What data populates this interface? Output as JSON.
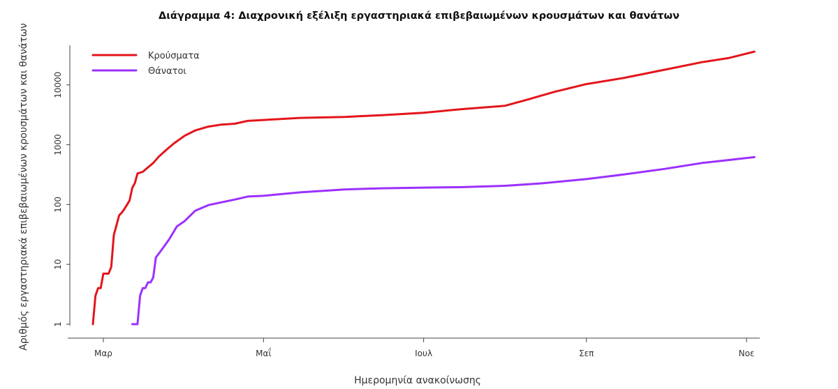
{
  "chart_data": {
    "type": "line",
    "title": "Διάγραμμα 4: Διαχρονική εξέλιξη εργαστηριακά επιβεβαιωμένων κρουσμάτων και θανάτων",
    "xlabel": "Ημερομηνία ανακοίνωσης",
    "ylabel": "Αριθμός εργαστηριακά επιβεβαιωμένων κρουσμάτων και θανάτων",
    "y_scale": "log",
    "ylim": [
      1,
      40000
    ],
    "xlim": [
      "2020-02-25",
      "2020-11-07"
    ],
    "grid": false,
    "legend_position": "top-left",
    "x_ticks": [
      {
        "date": "2020-03-01",
        "label": "Μαρ"
      },
      {
        "date": "2020-05-01",
        "label": "Μαΐ"
      },
      {
        "date": "2020-07-01",
        "label": "Ιουλ"
      },
      {
        "date": "2020-09-01",
        "label": "Σεπ"
      },
      {
        "date": "2020-11-01",
        "label": "Νοε"
      }
    ],
    "y_ticks": [
      {
        "value": 1,
        "label": "1"
      },
      {
        "value": 10,
        "label": "10"
      },
      {
        "value": 100,
        "label": "100"
      },
      {
        "value": 1000,
        "label": "1000"
      },
      {
        "value": 10000,
        "label": "10000"
      }
    ],
    "series": [
      {
        "name": "Κρούσματα",
        "color": "#e3151b",
        "points": [
          [
            "2020-02-26",
            1
          ],
          [
            "2020-02-27",
            3
          ],
          [
            "2020-02-28",
            4
          ],
          [
            "2020-02-29",
            4
          ],
          [
            "2020-03-01",
            7
          ],
          [
            "2020-03-03",
            7
          ],
          [
            "2020-03-04",
            9
          ],
          [
            "2020-03-05",
            31
          ],
          [
            "2020-03-06",
            45
          ],
          [
            "2020-03-07",
            66
          ],
          [
            "2020-03-08",
            73
          ],
          [
            "2020-03-09",
            84
          ],
          [
            "2020-03-10",
            99
          ],
          [
            "2020-03-11",
            117
          ],
          [
            "2020-03-12",
            190
          ],
          [
            "2020-03-13",
            228
          ],
          [
            "2020-03-14",
            331
          ],
          [
            "2020-03-16",
            352
          ],
          [
            "2020-03-18",
            418
          ],
          [
            "2020-03-20",
            495
          ],
          [
            "2020-03-22",
            624
          ],
          [
            "2020-03-25",
            821
          ],
          [
            "2020-03-28",
            1061
          ],
          [
            "2020-04-01",
            1415
          ],
          [
            "2020-04-05",
            1735
          ],
          [
            "2020-04-10",
            2011
          ],
          [
            "2020-04-15",
            2170
          ],
          [
            "2020-04-20",
            2245
          ],
          [
            "2020-04-25",
            2506
          ],
          [
            "2020-05-01",
            2591
          ],
          [
            "2020-05-15",
            2810
          ],
          [
            "2020-06-01",
            2917
          ],
          [
            "2020-06-15",
            3121
          ],
          [
            "2020-07-01",
            3432
          ],
          [
            "2020-07-15",
            3910
          ],
          [
            "2020-08-01",
            4477
          ],
          [
            "2020-08-10",
            5749
          ],
          [
            "2020-08-20",
            7684
          ],
          [
            "2020-09-01",
            10317
          ],
          [
            "2020-09-15",
            13000
          ],
          [
            "2020-10-01",
            18000
          ],
          [
            "2020-10-15",
            24000
          ],
          [
            "2020-10-25",
            28000
          ],
          [
            "2020-11-04",
            36000
          ]
        ]
      },
      {
        "name": "Θάνατοι",
        "color": "#9b30ff",
        "points": [
          [
            "2020-03-12",
            1
          ],
          [
            "2020-03-14",
            1
          ],
          [
            "2020-03-15",
            3
          ],
          [
            "2020-03-16",
            4
          ],
          [
            "2020-03-17",
            4
          ],
          [
            "2020-03-18",
            5
          ],
          [
            "2020-03-19",
            5
          ],
          [
            "2020-03-20",
            6
          ],
          [
            "2020-03-21",
            13
          ],
          [
            "2020-03-23",
            17
          ],
          [
            "2020-03-26",
            26
          ],
          [
            "2020-03-29",
            43
          ],
          [
            "2020-04-01",
            53
          ],
          [
            "2020-04-05",
            79
          ],
          [
            "2020-04-10",
            98
          ],
          [
            "2020-04-15",
            109
          ],
          [
            "2020-04-20",
            121
          ],
          [
            "2020-04-25",
            136
          ],
          [
            "2020-05-01",
            140
          ],
          [
            "2020-05-15",
            160
          ],
          [
            "2020-06-01",
            179
          ],
          [
            "2020-06-15",
            187
          ],
          [
            "2020-07-01",
            192
          ],
          [
            "2020-07-15",
            195
          ],
          [
            "2020-08-01",
            206
          ],
          [
            "2020-08-15",
            226
          ],
          [
            "2020-09-01",
            266
          ],
          [
            "2020-09-15",
            317
          ],
          [
            "2020-10-01",
            395
          ],
          [
            "2020-10-15",
            495
          ],
          [
            "2020-11-04",
            620
          ]
        ]
      }
    ]
  }
}
